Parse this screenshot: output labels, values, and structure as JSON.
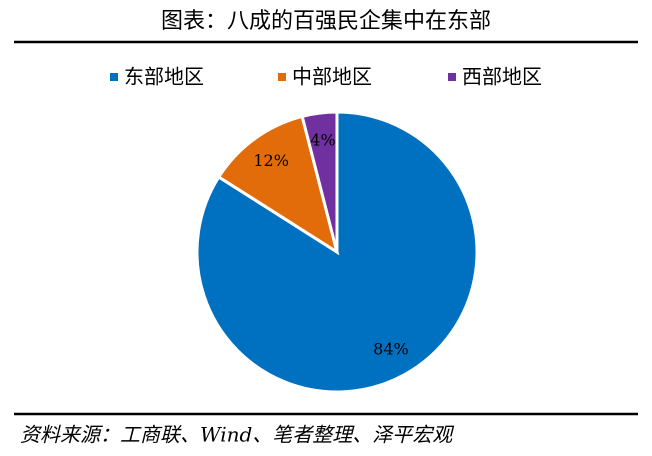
{
  "chart_data": {
    "type": "pie",
    "title": "图表：八成的百强民企集中在东部",
    "categories": [
      "东部地区",
      "中部地区",
      "西部地区"
    ],
    "values": [
      84,
      12,
      4
    ],
    "value_labels": [
      "84%",
      "12%",
      "4%"
    ],
    "colors": [
      "#0070c0",
      "#e36c0a",
      "#7030a0"
    ],
    "legend": "top",
    "source": "资料来源：工商联、Wind、笔者整理、泽平宏观"
  }
}
